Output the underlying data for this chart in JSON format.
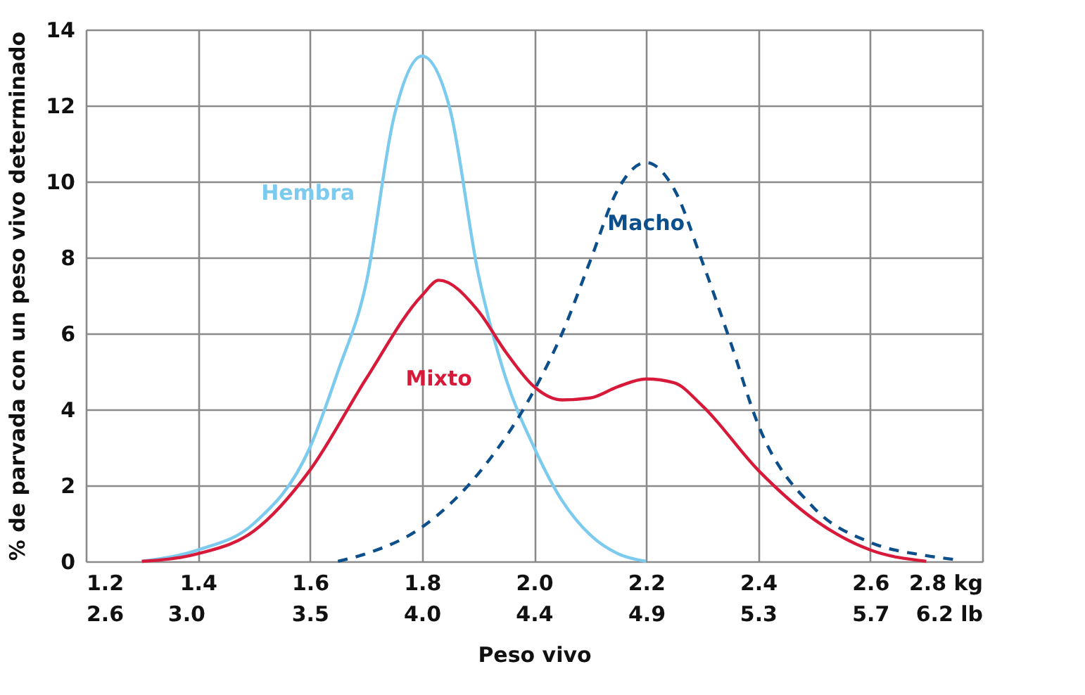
{
  "chart_data": {
    "type": "line",
    "xlabel": "Peso vivo",
    "ylabel": "% de parvada con un peso vivo determinado",
    "xlim": [
      1.2,
      2.8
    ],
    "xticks": [
      {
        "value": 1.2,
        "label": "1.2"
      },
      {
        "value": 1.4,
        "label": "1.4"
      },
      {
        "value": 1.6,
        "label": "1.6"
      },
      {
        "value": 1.8,
        "label": "1.8"
      },
      {
        "value": 2.0,
        "label": "2.0"
      },
      {
        "value": 2.2,
        "label": "2.2"
      },
      {
        "value": 2.4,
        "label": "2.4"
      },
      {
        "value": 2.6,
        "label": "2.6"
      },
      {
        "value": 2.8,
        "label": "2.8  kg"
      }
    ],
    "x2lim": [
      2.646,
      6.173
    ],
    "x2ticks": [
      {
        "value": 2.646,
        "label": "2.6"
      },
      {
        "value": 3.04,
        "label": "3.0"
      },
      {
        "value": 3.527,
        "label": "3.5"
      },
      {
        "value": 3.968,
        "label": "4.0"
      },
      {
        "value": 4.409,
        "label": "4.4"
      },
      {
        "value": 4.851,
        "label": "4.9"
      },
      {
        "value": 5.291,
        "label": "5.3"
      },
      {
        "value": 5.732,
        "label": "5.7"
      },
      {
        "value": 6.173,
        "label": "6.2  lb"
      }
    ],
    "ylim": [
      0,
      14
    ],
    "yticks": [
      0,
      2,
      4,
      6,
      8,
      10,
      12,
      14
    ],
    "grid": true,
    "marker": "none",
    "series": [
      {
        "name": "Hembra",
        "color": "#7ccbee",
        "line_style": "solid",
        "x": [
          1.3,
          1.4,
          1.5,
          1.6,
          1.65,
          1.7,
          1.75,
          1.8,
          1.85,
          1.9,
          1.95,
          2.0,
          2.05,
          2.1,
          2.15,
          2.2
        ],
        "values": [
          0,
          0.3,
          1.0,
          3.0,
          5.0,
          7.3,
          11.7,
          13.3,
          11.9,
          7.6,
          4.8,
          3.0,
          1.6,
          0.7,
          0.2,
          0
        ]
      },
      {
        "name": "Mixto",
        "color": "#d7193a",
        "line_style": "solid",
        "x": [
          1.3,
          1.4,
          1.5,
          1.6,
          1.7,
          1.8,
          1.83,
          1.9,
          1.95,
          2.0,
          2.05,
          2.1,
          2.15,
          2.2,
          2.25,
          2.3,
          2.4,
          2.5,
          2.6,
          2.7
        ],
        "values": [
          0,
          0.2,
          0.8,
          2.4,
          4.8,
          7.0,
          7.4,
          6.6,
          5.5,
          4.6,
          4.25,
          4.3,
          4.6,
          4.8,
          4.7,
          4.1,
          2.4,
          1.1,
          0.3,
          0
        ]
      },
      {
        "name": "Macho",
        "color": "#0d4f8b",
        "line_style": "dashed",
        "x": [
          1.65,
          1.7,
          1.8,
          1.9,
          2.0,
          2.05,
          2.1,
          2.15,
          2.2,
          2.25,
          2.3,
          2.35,
          2.4,
          2.5,
          2.6,
          2.7,
          2.75
        ],
        "values": [
          0,
          0.2,
          0.9,
          2.3,
          4.5,
          6.0,
          7.9,
          9.8,
          10.5,
          9.8,
          7.9,
          5.8,
          3.6,
          1.4,
          0.5,
          0.15,
          0.05
        ]
      }
    ]
  }
}
